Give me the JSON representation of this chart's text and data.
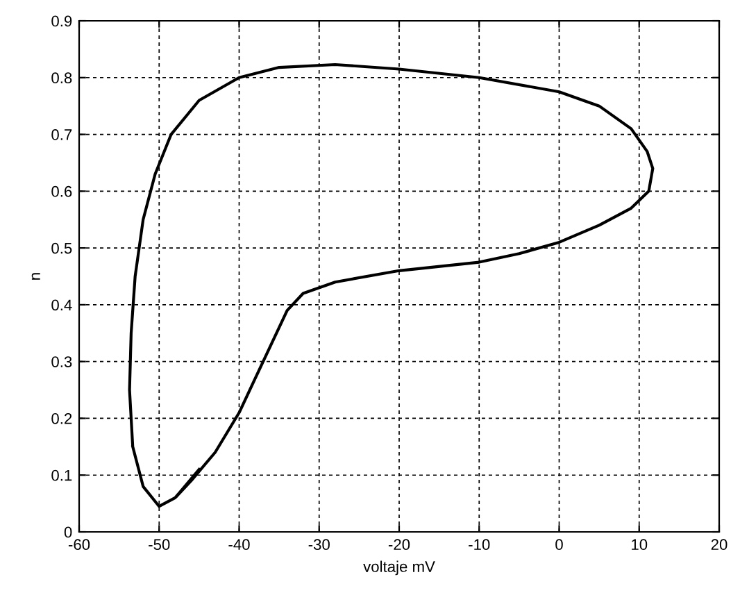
{
  "chart_data": {
    "type": "line",
    "xlabel": "voltaje mV",
    "ylabel": "n",
    "xlim": [
      -60,
      20
    ],
    "ylim": [
      0,
      0.9
    ],
    "xticks": [
      -60,
      -50,
      -40,
      -30,
      -20,
      -10,
      0,
      10,
      20
    ],
    "yticks": [
      0,
      0.1,
      0.2,
      0.3,
      0.4,
      0.5,
      0.6,
      0.7,
      0.8,
      0.9
    ],
    "grid": true,
    "series": [
      {
        "color": "#000000",
        "x": [
          -45,
          -48,
          -50,
          -52,
          -53.3,
          -53.7,
          -53.5,
          -53,
          -52,
          -50.5,
          -48.5,
          -45,
          -40,
          -35,
          -28,
          -20,
          -10,
          0,
          5,
          9,
          11,
          11.7,
          11.2,
          9,
          5,
          0,
          -5,
          -10,
          -20,
          -28,
          -32,
          -34,
          -36,
          -38,
          -40,
          -43,
          -46,
          -48,
          -50,
          -52,
          -53.3
        ],
        "values": [
          0.11,
          0.06,
          0.045,
          0.08,
          0.15,
          0.25,
          0.35,
          0.45,
          0.55,
          0.63,
          0.7,
          0.76,
          0.8,
          0.818,
          0.823,
          0.815,
          0.8,
          0.775,
          0.75,
          0.71,
          0.67,
          0.64,
          0.6,
          0.57,
          0.54,
          0.51,
          0.49,
          0.475,
          0.46,
          0.44,
          0.42,
          0.39,
          0.33,
          0.27,
          0.21,
          0.14,
          0.09,
          0.06,
          0.045,
          0.08,
          0.15
        ]
      }
    ]
  }
}
